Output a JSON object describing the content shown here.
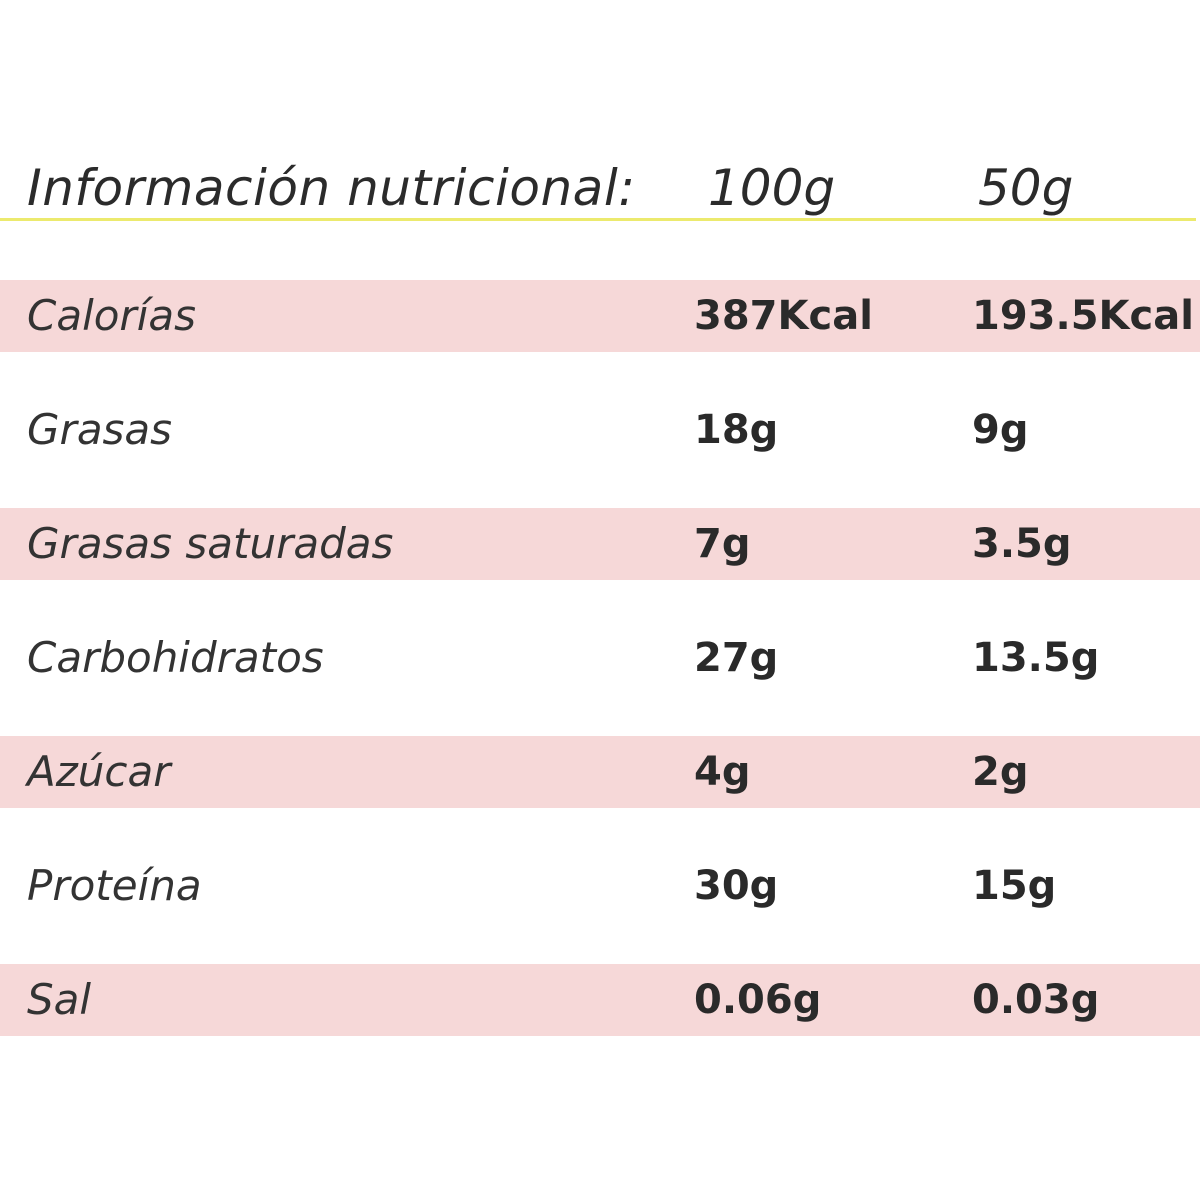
{
  "header": {
    "title": "Información nutricional:",
    "col_100g": "100g",
    "col_50g": "50g",
    "rule_color": "#ecea6e"
  },
  "row_shade_color": "#f6d8d8",
  "rows": [
    {
      "label": "Calorías",
      "per_100g": "387Kcal",
      "per_50g": "193.5Kcal",
      "shaded": true
    },
    {
      "label": "Grasas",
      "per_100g": "18g",
      "per_50g": "9g",
      "shaded": false
    },
    {
      "label": "Grasas saturadas",
      "per_100g": "7g",
      "per_50g": "3.5g",
      "shaded": true
    },
    {
      "label": "Carbohidratos",
      "per_100g": "27g",
      "per_50g": "13.5g",
      "shaded": false
    },
    {
      "label": "Azúcar",
      "per_100g": "4g",
      "per_50g": "2g",
      "shaded": true
    },
    {
      "label": "Proteína",
      "per_100g": "30g",
      "per_50g": "15g",
      "shaded": false
    },
    {
      "label": "Sal",
      "per_100g": "0.06g",
      "per_50g": "0.03g",
      "shaded": true
    }
  ]
}
